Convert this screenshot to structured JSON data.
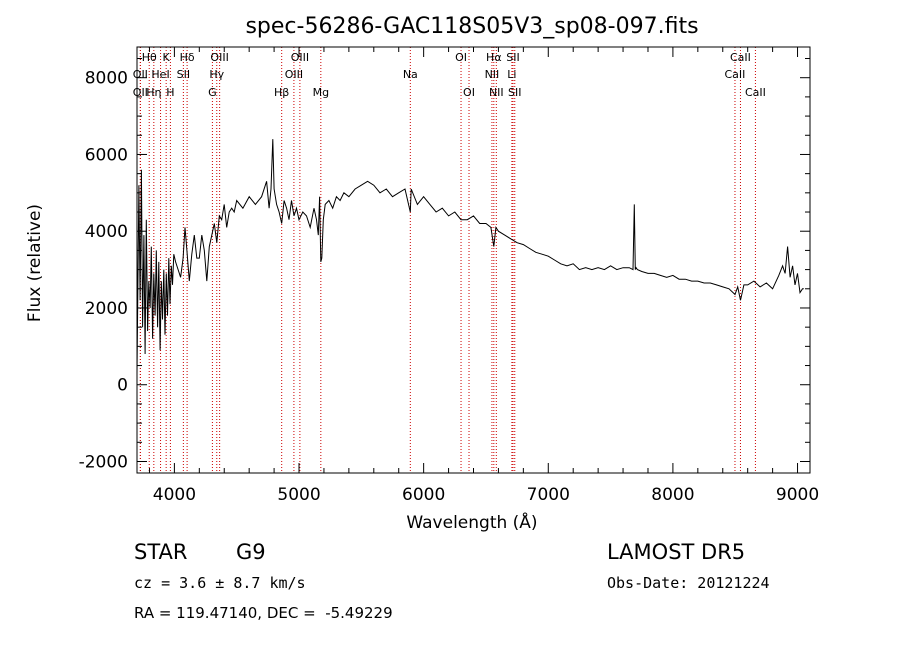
{
  "chart_data": {
    "type": "line",
    "title": "spec-56286-GAC118S05V3_sp08-097.fits",
    "xlabel": "Wavelength (Å)",
    "ylabel": "Flux (relative)",
    "xlim": [
      3700,
      9100
    ],
    "ylim": [
      -2300,
      8800
    ],
    "xticks": [
      4000,
      5000,
      6000,
      7000,
      8000,
      9000
    ],
    "yticks": [
      -2000,
      0,
      2000,
      4000,
      6000,
      8000
    ],
    "grid": false,
    "line_color": "#000000",
    "marker_color": "#cc0000",
    "spectrum": {
      "x": [
        3700,
        3715,
        3725,
        3735,
        3745,
        3755,
        3765,
        3775,
        3785,
        3795,
        3805,
        3815,
        3825,
        3835,
        3845,
        3855,
        3865,
        3875,
        3885,
        3895,
        3905,
        3915,
        3925,
        3935,
        3945,
        3955,
        3965,
        3975,
        3985,
        3995,
        4010,
        4030,
        4050,
        4070,
        4085,
        4100,
        4120,
        4140,
        4160,
        4180,
        4200,
        4220,
        4240,
        4260,
        4280,
        4300,
        4320,
        4340,
        4360,
        4380,
        4400,
        4420,
        4440,
        4460,
        4480,
        4500,
        4550,
        4600,
        4650,
        4700,
        4740,
        4760,
        4775,
        4790,
        4800,
        4820,
        4840,
        4861,
        4880,
        4900,
        4920,
        4940,
        4960,
        4980,
        5000,
        5030,
        5060,
        5090,
        5120,
        5140,
        5155,
        5165,
        5175,
        5183,
        5195,
        5210,
        5240,
        5270,
        5300,
        5330,
        5360,
        5400,
        5450,
        5500,
        5550,
        5600,
        5650,
        5700,
        5750,
        5800,
        5850,
        5893,
        5900,
        5950,
        6000,
        6050,
        6100,
        6150,
        6200,
        6250,
        6300,
        6350,
        6400,
        6450,
        6500,
        6540,
        6563,
        6580,
        6600,
        6650,
        6700,
        6750,
        6800,
        6850,
        6900,
        6950,
        7000,
        7050,
        7100,
        7150,
        7200,
        7250,
        7300,
        7350,
        7400,
        7450,
        7500,
        7550,
        7600,
        7650,
        7680,
        7690,
        7698,
        7705,
        7715,
        7750,
        7800,
        7850,
        7900,
        7950,
        8000,
        8050,
        8100,
        8150,
        8200,
        8250,
        8300,
        8350,
        8400,
        8450,
        8498,
        8520,
        8542,
        8570,
        8600,
        8650,
        8700,
        8750,
        8800,
        8850,
        8880,
        8900,
        8920,
        8940,
        8960,
        8980,
        9000,
        9020,
        9040,
        9050
      ],
      "y": [
        300,
        5200,
        2200,
        5600,
        1500,
        3900,
        800,
        4300,
        1400,
        2700,
        2000,
        3600,
        1200,
        2900,
        1800,
        3500,
        1500,
        3200,
        900,
        2700,
        1700,
        3000,
        1300,
        2900,
        1800,
        3300,
        2100,
        3100,
        2600,
        3400,
        3200,
        3000,
        2800,
        3300,
        4100,
        3500,
        2700,
        3400,
        3900,
        3300,
        3300,
        3900,
        3500,
        2700,
        3600,
        3900,
        4200,
        3700,
        4400,
        4300,
        4700,
        4100,
        4500,
        4600,
        4500,
        4800,
        4600,
        4900,
        4700,
        4900,
        5300,
        4600,
        5100,
        6400,
        5100,
        4700,
        4500,
        4200,
        4800,
        4600,
        4300,
        4800,
        4400,
        4600,
        4300,
        4500,
        4400,
        4100,
        4600,
        4300,
        3900,
        4900,
        3200,
        3300,
        4300,
        4700,
        4800,
        4600,
        4900,
        4800,
        5000,
        4900,
        5100,
        5200,
        5300,
        5200,
        5000,
        5100,
        4900,
        5000,
        5100,
        4500,
        5100,
        4700,
        4900,
        4700,
        4500,
        4600,
        4400,
        4500,
        4300,
        4300,
        4400,
        4200,
        4200,
        4100,
        3600,
        4100,
        4000,
        3900,
        3800,
        3700,
        3650,
        3550,
        3450,
        3400,
        3350,
        3250,
        3150,
        3100,
        3150,
        3000,
        3050,
        3000,
        3050,
        3000,
        3100,
        3000,
        3050,
        3050,
        3000,
        4700,
        3000,
        3050,
        3000,
        2950,
        2900,
        2900,
        2850,
        2800,
        2850,
        2750,
        2750,
        2700,
        2700,
        2650,
        2650,
        2600,
        2550,
        2500,
        2350,
        2550,
        2200,
        2600,
        2600,
        2700,
        2550,
        2650,
        2500,
        2850,
        3100,
        2900,
        3600,
        2800,
        3100,
        2600,
        2900,
        2400,
        2500,
        2500
      ]
    },
    "lines": [
      {
        "label": "OII",
        "x": 3727,
        "row": 3
      },
      {
        "label": "Hθ",
        "x": 3798,
        "row": 1
      },
      {
        "label": "OII",
        "x": 3727,
        "row": 2
      },
      {
        "label": "Hη",
        "x": 3835,
        "row": 3
      },
      {
        "label": "HeI",
        "x": 3889,
        "row": 2
      },
      {
        "label": "K",
        "x": 3934,
        "row": 1
      },
      {
        "label": "H",
        "x": 3968,
        "row": 3
      },
      {
        "label": "SII",
        "x": 4072,
        "row": 2
      },
      {
        "label": "Hδ",
        "x": 4102,
        "row": 1
      },
      {
        "label": "OIII",
        "x": 4363,
        "row": 1
      },
      {
        "label": "Hγ",
        "x": 4340,
        "row": 2
      },
      {
        "label": "G",
        "x": 4305,
        "row": 3
      },
      {
        "label": "Hβ",
        "x": 4861,
        "row": 3
      },
      {
        "label": "OIII",
        "x": 4959,
        "row": 2
      },
      {
        "label": "OIII",
        "x": 5007,
        "row": 1
      },
      {
        "label": "Mg",
        "x": 5175,
        "row": 3
      },
      {
        "label": "Na",
        "x": 5893,
        "row": 2
      },
      {
        "label": "OI",
        "x": 6300,
        "row": 1
      },
      {
        "label": "OI",
        "x": 6364,
        "row": 3
      },
      {
        "label": "NII",
        "x": 6548,
        "row": 2
      },
      {
        "label": "Hα",
        "x": 6563,
        "row": 1
      },
      {
        "label": "NII",
        "x": 6583,
        "row": 3
      },
      {
        "label": "Li",
        "x": 6708,
        "row": 2
      },
      {
        "label": "SII",
        "x": 6717,
        "row": 1
      },
      {
        "label": "SII",
        "x": 6731,
        "row": 3
      },
      {
        "label": "CaII",
        "x": 8498,
        "row": 2
      },
      {
        "label": "CaII",
        "x": 8542,
        "row": 1
      },
      {
        "label": "CaII",
        "x": 8662,
        "row": 3
      }
    ]
  },
  "info": {
    "class": "STAR",
    "subclass": "G9",
    "survey": "LAMOST DR5",
    "cz": "cz = 3.6 ± 8.7 km/s",
    "obs_date": "Obs-Date: 20121224",
    "coords": "RA = 119.47140, DEC =  -5.49229"
  }
}
